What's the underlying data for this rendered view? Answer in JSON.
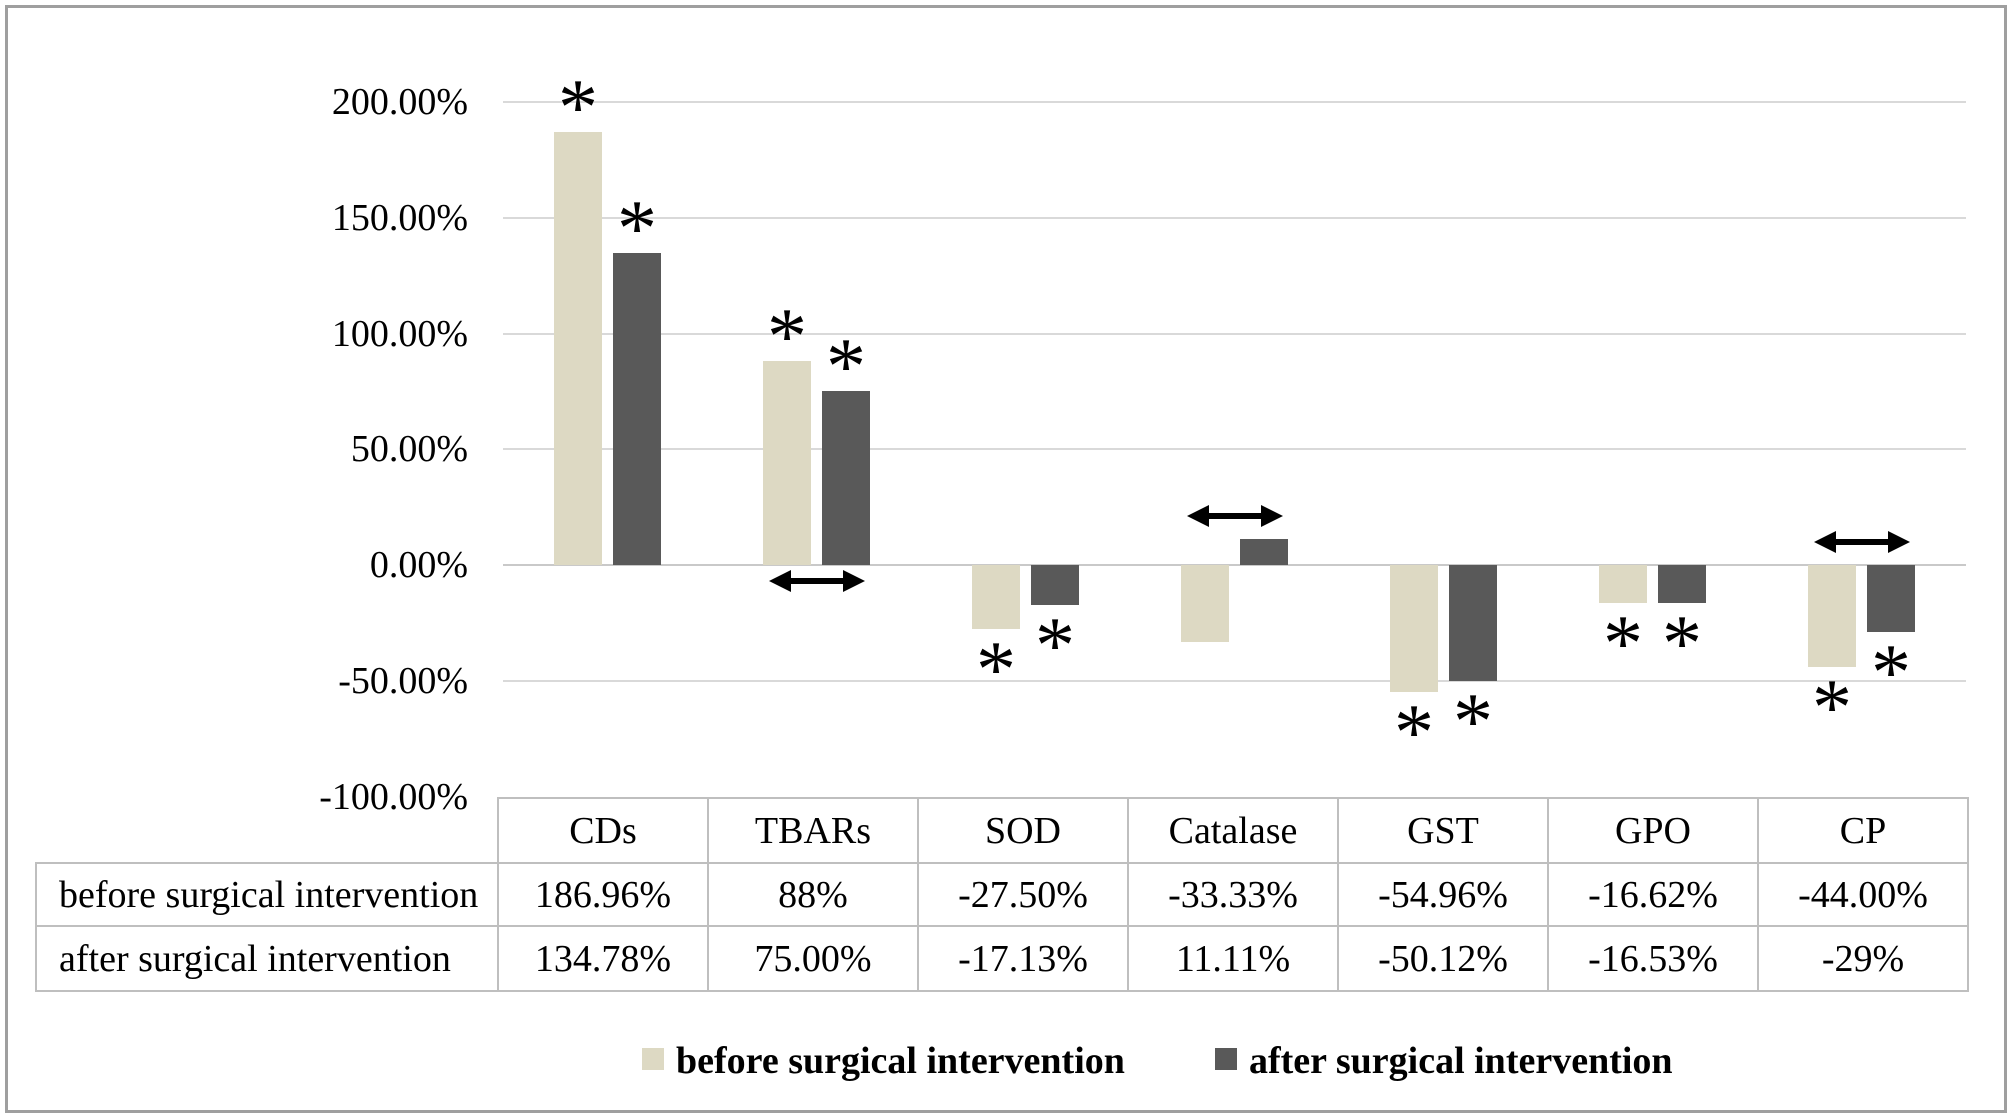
{
  "chart_data": {
    "type": "bar",
    "title": "",
    "categories": [
      "CDs",
      "TBARs",
      "SOD",
      "Catalase",
      "GST",
      "GPO",
      "CP"
    ],
    "series": [
      {
        "name": "before surgical intervention",
        "color": "#ddd9c3",
        "values": [
          186.96,
          88,
          -27.5,
          -33.33,
          -54.96,
          -16.62,
          -44.0
        ],
        "labels": [
          "186.96%",
          "88%",
          "-27.50%",
          "-33.33%",
          "-54.96%",
          "-16.62%",
          "-44.00%"
        ]
      },
      {
        "name": "after surgical intervention",
        "color": "#595959",
        "values": [
          134.78,
          75.0,
          -17.13,
          11.11,
          -50.12,
          -16.53,
          -29
        ],
        "labels": [
          "134.78%",
          "75.00%",
          "-17.13%",
          "11.11%",
          "-50.12%",
          "-16.53%",
          "-29%"
        ]
      }
    ],
    "y_axis": {
      "tick_labels": [
        "200.00%",
        "150.00%",
        "100.00%",
        "50.00%",
        "0.00%",
        "-50.00%",
        "-100.00%"
      ],
      "tick_values": [
        200,
        150,
        100,
        50,
        0,
        -50,
        -100
      ],
      "range": [
        -100,
        200
      ],
      "grid": true
    },
    "annotations": {
      "significance_star": "*",
      "stars_per_category": [
        "above",
        "above",
        "below",
        null,
        "below",
        "below",
        "below"
      ],
      "arrows_per_category": [
        null,
        "below",
        null,
        "above",
        null,
        null,
        "above"
      ],
      "arrow_glyph": "double-headed-horizontal-arrow",
      "annotation_color": "#000000"
    },
    "legend_position": "bottom"
  },
  "table": {
    "column_headers": [
      "CDs",
      "TBARs",
      "SOD",
      "Catalase",
      "GST",
      "GPO",
      "CP"
    ],
    "rows": [
      {
        "label": "before surgical intervention",
        "values": [
          "186.96%",
          "88%",
          "-27.50%",
          "-33.33%",
          "-54.96%",
          "-16.62%",
          "-44.00%"
        ]
      },
      {
        "label": "after surgical intervention",
        "values": [
          "134.78%",
          "75.00%",
          "-17.13%",
          "11.11%",
          "-50.12%",
          "-16.53%",
          "-29%"
        ]
      }
    ],
    "border_color": "#bfbfbf"
  },
  "legend": {
    "items": [
      {
        "label": "before surgical intervention",
        "color": "#ddd9c3"
      },
      {
        "label": "after surgical intervention",
        "color": "#595959"
      }
    ]
  }
}
